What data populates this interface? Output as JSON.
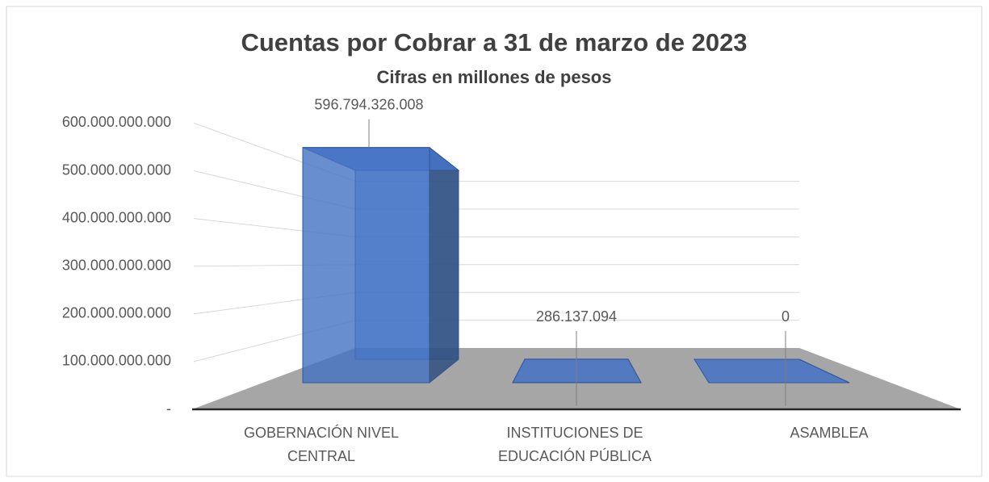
{
  "chart_data": {
    "type": "bar3d",
    "title": "Cuentas por Cobrar a 31 de marzo de 2023",
    "subtitle": "Cifras en millones de pesos",
    "categories": [
      "GOBERNACIÓN NIVEL CENTRAL",
      "INSTITUCIONES DE EDUCACIÓN PÚBLICA",
      "ASAMBLEA"
    ],
    "values": [
      596794326008,
      286137094,
      0
    ],
    "value_labels": [
      "596.794.326.008",
      "286.137.094",
      "0"
    ],
    "color": "#4472c4",
    "ylim": [
      0,
      600000000000
    ],
    "yticks": [
      {
        "value": 0,
        "label": "-"
      },
      {
        "value": 100000000000,
        "label": "100.000.000.000"
      },
      {
        "value": 200000000000,
        "label": "200.000.000.000"
      },
      {
        "value": 300000000000,
        "label": "300.000.000.000"
      },
      {
        "value": 400000000000,
        "label": "400.000.000.000"
      },
      {
        "value": 500000000000,
        "label": "500.000.000.000"
      },
      {
        "value": 600000000000,
        "label": "600.000.000.000"
      }
    ],
    "grid": true
  }
}
